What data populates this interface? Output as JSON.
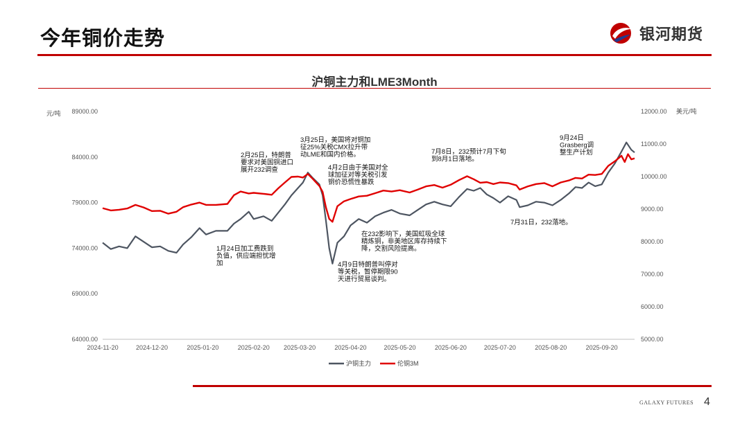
{
  "slide": {
    "title": "今年铜价走势",
    "logo_text": "银河期货",
    "footer_brand": "GALAXY FUTURES",
    "page_number": "4"
  },
  "colors": {
    "accent_red": "#c00000",
    "shfe_line": "#4d5561",
    "lme_line": "#e00000"
  },
  "chart_data": {
    "type": "line",
    "title": "沪铜主力和LME3Month",
    "y_left": {
      "unit": "元/吨",
      "range": [
        64000,
        89000
      ],
      "ticks": [
        "64000.00",
        "69000.00",
        "74000.00",
        "79000.00",
        "84000.00",
        "89000.00"
      ]
    },
    "y_right": {
      "unit": "美元/吨",
      "range": [
        5000,
        12000
      ],
      "ticks": [
        "5000.00",
        "6000.00",
        "7000.00",
        "8000.00",
        "9000.00",
        "10000.00",
        "11000.00",
        "12000.00"
      ]
    },
    "x_ticks": [
      "2024-11-20",
      "2024-12-20",
      "2025-01-20",
      "2025-02-20",
      "2025-03-20",
      "2025-04-20",
      "2025-05-20",
      "2025-06-20",
      "2025-07-20",
      "2025-08-20",
      "2025-09-20"
    ],
    "x_range": [
      "2024-11-20",
      "2025-10-10"
    ],
    "legend_position": "bottom",
    "series": [
      {
        "name": "沪铜主力",
        "axis": "left",
        "color": "#4d5561",
        "points": [
          [
            "2024-11-20",
            74600
          ],
          [
            "2024-11-25",
            73900
          ],
          [
            "2024-11-30",
            74200
          ],
          [
            "2024-12-05",
            74000
          ],
          [
            "2024-12-10",
            75300
          ],
          [
            "2024-12-15",
            74700
          ],
          [
            "2024-12-20",
            74100
          ],
          [
            "2024-12-25",
            74200
          ],
          [
            "2024-12-30",
            73700
          ],
          [
            "2025-01-04",
            73500
          ],
          [
            "2025-01-08",
            74400
          ],
          [
            "2025-01-13",
            75200
          ],
          [
            "2025-01-18",
            76200
          ],
          [
            "2025-01-22",
            75500
          ],
          [
            "2025-01-28",
            75900
          ],
          [
            "2025-02-04",
            75900
          ],
          [
            "2025-02-08",
            76700
          ],
          [
            "2025-02-12",
            77200
          ],
          [
            "2025-02-17",
            78000
          ],
          [
            "2025-02-20",
            77200
          ],
          [
            "2025-02-26",
            77500
          ],
          [
            "2025-03-03",
            77000
          ],
          [
            "2025-03-07",
            77900
          ],
          [
            "2025-03-11",
            78800
          ],
          [
            "2025-03-15",
            79800
          ],
          [
            "2025-03-19",
            80600
          ],
          [
            "2025-03-22",
            81200
          ],
          [
            "2025-03-25",
            82300
          ],
          [
            "2025-03-28",
            81700
          ],
          [
            "2025-04-01",
            81000
          ],
          [
            "2025-04-03",
            79800
          ],
          [
            "2025-04-05",
            77000
          ],
          [
            "2025-04-07",
            74000
          ],
          [
            "2025-04-09",
            72300
          ],
          [
            "2025-04-12",
            74600
          ],
          [
            "2025-04-16",
            75300
          ],
          [
            "2025-04-20",
            76500
          ],
          [
            "2025-04-25",
            77200
          ],
          [
            "2025-04-30",
            76800
          ],
          [
            "2025-05-05",
            77500
          ],
          [
            "2025-05-10",
            77900
          ],
          [
            "2025-05-15",
            78200
          ],
          [
            "2025-05-20",
            77800
          ],
          [
            "2025-05-26",
            77600
          ],
          [
            "2025-05-31",
            78200
          ],
          [
            "2025-06-05",
            78800
          ],
          [
            "2025-06-10",
            79100
          ],
          [
            "2025-06-15",
            78800
          ],
          [
            "2025-06-20",
            78600
          ],
          [
            "2025-06-25",
            79600
          ],
          [
            "2025-06-30",
            80500
          ],
          [
            "2025-07-04",
            80300
          ],
          [
            "2025-07-08",
            80600
          ],
          [
            "2025-07-12",
            79900
          ],
          [
            "2025-07-16",
            79500
          ],
          [
            "2025-07-20",
            79000
          ],
          [
            "2025-07-25",
            79700
          ],
          [
            "2025-07-30",
            79300
          ],
          [
            "2025-08-01",
            78500
          ],
          [
            "2025-08-06",
            78700
          ],
          [
            "2025-08-11",
            79100
          ],
          [
            "2025-08-16",
            79000
          ],
          [
            "2025-08-21",
            78700
          ],
          [
            "2025-08-26",
            79300
          ],
          [
            "2025-08-31",
            80000
          ],
          [
            "2025-09-04",
            80700
          ],
          [
            "2025-09-08",
            80600
          ],
          [
            "2025-09-12",
            81200
          ],
          [
            "2025-09-16",
            80800
          ],
          [
            "2025-09-20",
            81000
          ],
          [
            "2025-09-24",
            82300
          ],
          [
            "2025-09-28",
            83300
          ],
          [
            "2025-10-02",
            84600
          ],
          [
            "2025-10-05",
            85600
          ],
          [
            "2025-10-08",
            84800
          ],
          [
            "2025-10-10",
            84500
          ]
        ]
      },
      {
        "name": "伦铜3M",
        "axis": "right",
        "color": "#e00000",
        "points": [
          [
            "2024-11-20",
            9030
          ],
          [
            "2024-11-25",
            8960
          ],
          [
            "2024-11-30",
            8980
          ],
          [
            "2024-12-05",
            9020
          ],
          [
            "2024-12-10",
            9130
          ],
          [
            "2024-12-15",
            9050
          ],
          [
            "2024-12-20",
            8940
          ],
          [
            "2024-12-25",
            8950
          ],
          [
            "2024-12-30",
            8860
          ],
          [
            "2025-01-04",
            8920
          ],
          [
            "2025-01-08",
            9060
          ],
          [
            "2025-01-13",
            9140
          ],
          [
            "2025-01-18",
            9200
          ],
          [
            "2025-01-22",
            9130
          ],
          [
            "2025-01-28",
            9130
          ],
          [
            "2025-02-04",
            9160
          ],
          [
            "2025-02-08",
            9430
          ],
          [
            "2025-02-12",
            9540
          ],
          [
            "2025-02-17",
            9480
          ],
          [
            "2025-02-20",
            9500
          ],
          [
            "2025-02-26",
            9470
          ],
          [
            "2025-03-03",
            9440
          ],
          [
            "2025-03-07",
            9640
          ],
          [
            "2025-03-11",
            9820
          ],
          [
            "2025-03-15",
            9990
          ],
          [
            "2025-03-19",
            10000
          ],
          [
            "2025-03-22",
            9970
          ],
          [
            "2025-03-25",
            10080
          ],
          [
            "2025-03-28",
            9930
          ],
          [
            "2025-04-01",
            9710
          ],
          [
            "2025-04-03",
            9530
          ],
          [
            "2025-04-05",
            9050
          ],
          [
            "2025-04-07",
            8700
          ],
          [
            "2025-04-09",
            8610
          ],
          [
            "2025-04-12",
            9090
          ],
          [
            "2025-04-16",
            9240
          ],
          [
            "2025-04-20",
            9310
          ],
          [
            "2025-04-25",
            9390
          ],
          [
            "2025-04-30",
            9410
          ],
          [
            "2025-05-05",
            9490
          ],
          [
            "2025-05-10",
            9570
          ],
          [
            "2025-05-15",
            9540
          ],
          [
            "2025-05-20",
            9580
          ],
          [
            "2025-05-26",
            9510
          ],
          [
            "2025-05-31",
            9600
          ],
          [
            "2025-06-05",
            9700
          ],
          [
            "2025-06-10",
            9740
          ],
          [
            "2025-06-15",
            9660
          ],
          [
            "2025-06-20",
            9750
          ],
          [
            "2025-06-25",
            9890
          ],
          [
            "2025-06-30",
            10010
          ],
          [
            "2025-07-04",
            9920
          ],
          [
            "2025-07-08",
            9810
          ],
          [
            "2025-07-12",
            9830
          ],
          [
            "2025-07-16",
            9770
          ],
          [
            "2025-07-20",
            9820
          ],
          [
            "2025-07-25",
            9800
          ],
          [
            "2025-07-30",
            9730
          ],
          [
            "2025-08-01",
            9600
          ],
          [
            "2025-08-06",
            9700
          ],
          [
            "2025-08-11",
            9770
          ],
          [
            "2025-08-16",
            9800
          ],
          [
            "2025-08-21",
            9700
          ],
          [
            "2025-08-26",
            9820
          ],
          [
            "2025-08-31",
            9880
          ],
          [
            "2025-09-04",
            9960
          ],
          [
            "2025-09-08",
            9940
          ],
          [
            "2025-09-12",
            10060
          ],
          [
            "2025-09-16",
            10050
          ],
          [
            "2025-09-20",
            10080
          ],
          [
            "2025-09-24",
            10330
          ],
          [
            "2025-09-28",
            10470
          ],
          [
            "2025-10-02",
            10640
          ],
          [
            "2025-10-04",
            10450
          ],
          [
            "2025-10-06",
            10690
          ],
          [
            "2025-10-08",
            10530
          ],
          [
            "2025-10-10",
            10560
          ]
        ]
      }
    ],
    "annotations": [
      {
        "lines": [
          "1月24日加工费跌到",
          "负值，供应端担忧增",
          "加"
        ]
      },
      {
        "lines": [
          "2月25日，特朗普",
          "要求对美国铜进口",
          "展开232调查"
        ]
      },
      {
        "lines": [
          "3月25日，美国将对铜加",
          "征25%关税CMX拉升带",
          "动LME和国内价格。"
        ]
      },
      {
        "lines": [
          "4月2日由于美国对全",
          "球加征对等关税引发",
          "铜价恐慌性暴跌"
        ]
      },
      {
        "lines": [
          "4月9日特朗普叫停对",
          "等关税，暂停期限90",
          "天进行贸易谈判。"
        ]
      },
      {
        "lines": [
          "在232影响下，美国虹吸全球",
          "精炼铜，非美地区库存持续下",
          "降，交割风险提高。"
        ]
      },
      {
        "lines": [
          "7月8日，232预计7月下旬",
          "到8月1日落地。"
        ]
      },
      {
        "lines": [
          "7月31日，232落地。"
        ]
      },
      {
        "lines": [
          "9月24日",
          "Grasberg调",
          "整生产计划"
        ]
      }
    ]
  }
}
